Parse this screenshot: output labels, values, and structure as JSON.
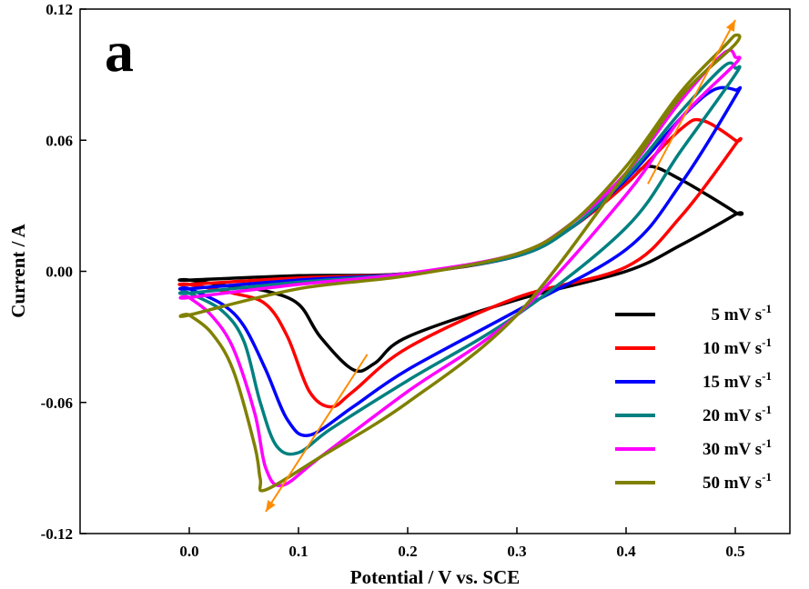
{
  "chart_data": {
    "type": "line",
    "panel_label": "a",
    "xlabel": "Potential / V vs. SCE",
    "ylabel": "Current / A",
    "xlim": [
      -0.1,
      0.55
    ],
    "ylim": [
      -0.12,
      0.12
    ],
    "xticks": [
      0.0,
      0.1,
      0.2,
      0.3,
      0.4,
      0.5
    ],
    "xtick_labels": [
      "0.0",
      "0.1",
      "0.2",
      "0.3",
      "0.4",
      "0.5"
    ],
    "yticks": [
      -0.12,
      -0.06,
      0.0,
      0.06,
      0.12
    ],
    "ytick_labels": [
      "-0.12",
      "-0.06",
      "0.00",
      "0.06",
      "0.12"
    ],
    "grid": false,
    "legend_position": "lower-right",
    "series": [
      {
        "name": "5 mV s-1",
        "label_main": "5 mV s",
        "label_sup": "-1",
        "color": "#000000",
        "x": [
          0.0,
          0.1,
          0.2,
          0.3,
          0.35,
          0.4,
          0.42,
          0.45,
          0.5,
          0.5,
          0.45,
          0.4,
          0.3,
          0.2,
          0.17,
          0.15,
          0.12,
          0.1,
          0.07,
          0.04,
          0.0
        ],
        "y": [
          -0.004,
          -0.002,
          -0.001,
          0.007,
          0.02,
          0.04,
          0.048,
          0.042,
          0.027,
          0.026,
          0.012,
          0.0,
          -0.013,
          -0.03,
          -0.042,
          -0.045,
          -0.03,
          -0.015,
          -0.009,
          -0.007,
          -0.004
        ]
      },
      {
        "name": "10 mV s-1",
        "label_main": "10 mV s",
        "label_sup": "-1",
        "color": "#ff0000",
        "x": [
          0.0,
          0.1,
          0.2,
          0.3,
          0.35,
          0.4,
          0.45,
          0.47,
          0.5,
          0.5,
          0.45,
          0.4,
          0.3,
          0.2,
          0.15,
          0.13,
          0.11,
          0.09,
          0.07,
          0.04,
          0.0
        ],
        "y": [
          -0.006,
          -0.003,
          -0.001,
          0.007,
          0.02,
          0.04,
          0.065,
          0.069,
          0.06,
          0.058,
          0.025,
          0.002,
          -0.012,
          -0.035,
          -0.055,
          -0.062,
          -0.055,
          -0.03,
          -0.015,
          -0.01,
          -0.006
        ]
      },
      {
        "name": "15 mV s-1",
        "label_main": "15 mV s",
        "label_sup": "-1",
        "color": "#0000ff",
        "x": [
          0.0,
          0.1,
          0.2,
          0.3,
          0.35,
          0.4,
          0.45,
          0.48,
          0.5,
          0.5,
          0.45,
          0.4,
          0.3,
          0.2,
          0.15,
          0.11,
          0.09,
          0.07,
          0.05,
          0.03,
          0.0
        ],
        "y": [
          -0.008,
          -0.004,
          -0.001,
          0.007,
          0.02,
          0.042,
          0.07,
          0.083,
          0.083,
          0.08,
          0.04,
          0.01,
          -0.018,
          -0.045,
          -0.062,
          -0.075,
          -0.068,
          -0.045,
          -0.025,
          -0.015,
          -0.008
        ]
      },
      {
        "name": "20 mV s-1",
        "label_main": "20 mV s",
        "label_sup": "-1",
        "color": "#008080",
        "x": [
          0.0,
          0.1,
          0.2,
          0.3,
          0.35,
          0.4,
          0.45,
          0.49,
          0.5,
          0.5,
          0.45,
          0.4,
          0.3,
          0.2,
          0.13,
          0.1,
          0.08,
          0.065,
          0.05,
          0.03,
          0.0
        ],
        "y": [
          -0.01,
          -0.005,
          -0.001,
          0.007,
          0.02,
          0.043,
          0.073,
          0.094,
          0.093,
          0.09,
          0.055,
          0.02,
          -0.02,
          -0.05,
          -0.072,
          -0.083,
          -0.08,
          -0.06,
          -0.032,
          -0.018,
          -0.01
        ]
      },
      {
        "name": "30 mV s-1",
        "label_main": "30 mV s",
        "label_sup": "-1",
        "color": "#ff00ff",
        "x": [
          0.0,
          0.1,
          0.2,
          0.3,
          0.35,
          0.4,
          0.45,
          0.49,
          0.5,
          0.5,
          0.45,
          0.4,
          0.3,
          0.2,
          0.12,
          0.085,
          0.07,
          0.06,
          0.04,
          0.02,
          0.0
        ],
        "y": [
          -0.012,
          -0.006,
          -0.001,
          0.008,
          0.022,
          0.045,
          0.078,
          0.1,
          0.098,
          0.095,
          0.07,
          0.035,
          -0.02,
          -0.055,
          -0.085,
          -0.098,
          -0.09,
          -0.065,
          -0.035,
          -0.02,
          -0.012
        ]
      },
      {
        "name": "50 mV s-1",
        "label_main": "50 mV s",
        "label_sup": "-1",
        "color": "#808000",
        "x": [
          0.0,
          0.1,
          0.2,
          0.3,
          0.35,
          0.4,
          0.45,
          0.49,
          0.5,
          0.5,
          0.45,
          0.4,
          0.3,
          0.2,
          0.12,
          0.07,
          0.065,
          0.06,
          0.04,
          0.02,
          0.0
        ],
        "y": [
          -0.02,
          -0.008,
          -0.002,
          0.008,
          0.022,
          0.048,
          0.082,
          0.103,
          0.108,
          0.104,
          0.08,
          0.045,
          -0.02,
          -0.06,
          -0.085,
          -0.1,
          -0.095,
          -0.08,
          -0.045,
          -0.028,
          -0.02
        ]
      }
    ],
    "arrows": [
      {
        "color": "#ff8c00",
        "x": [
          0.163,
          0.07
        ],
        "y": [
          -0.038,
          -0.11
        ]
      },
      {
        "color": "#ff8c00",
        "x": [
          0.42,
          0.5
        ],
        "y": [
          0.04,
          0.115
        ]
      }
    ]
  }
}
